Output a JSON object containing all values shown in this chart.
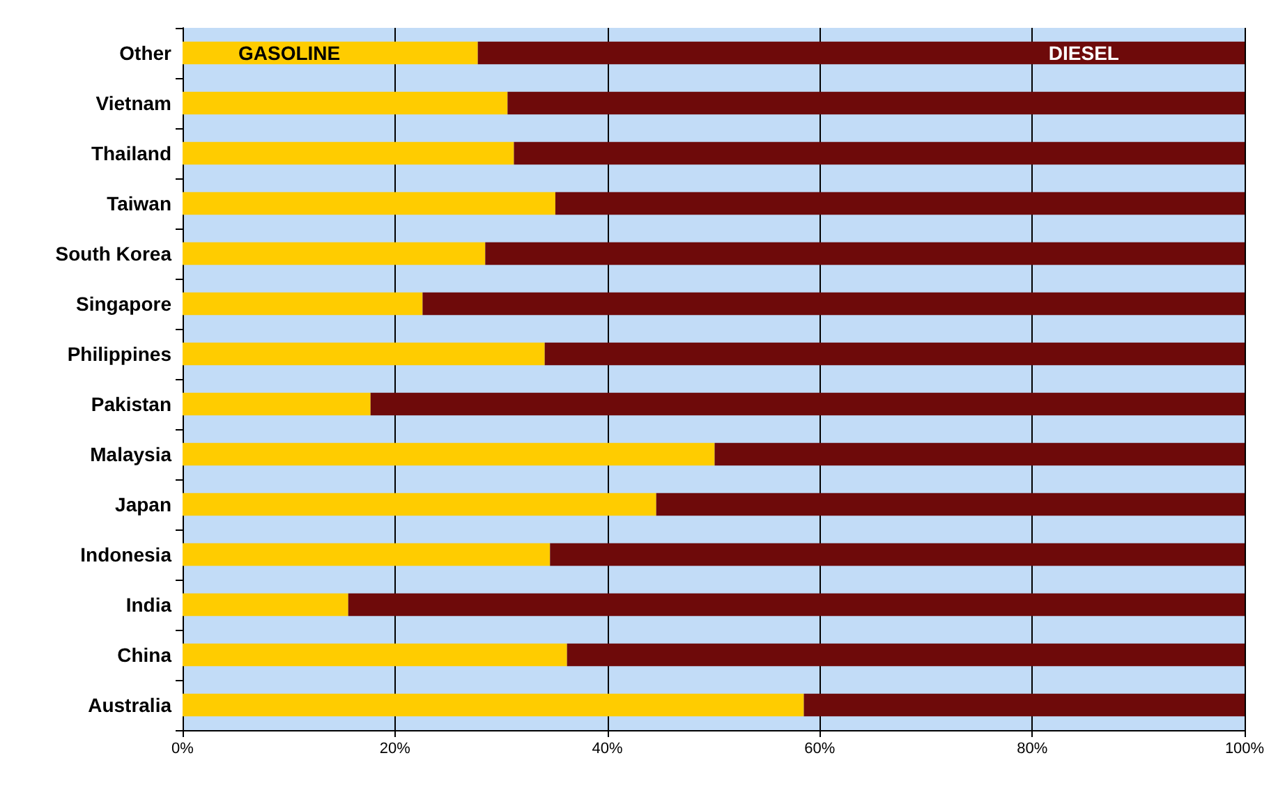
{
  "chart_data": {
    "type": "bar",
    "orientation": "horizontal",
    "stacked": true,
    "categories": [
      "Other",
      "Vietnam",
      "Thailand",
      "Taiwan",
      "South Korea",
      "Singapore",
      "Philippines",
      "Pakistan",
      "Malaysia",
      "Japan",
      "Indonesia",
      "India",
      "China",
      "Australia"
    ],
    "series": [
      {
        "name": "GASOLINE",
        "color": "#ffcc00",
        "values": [
          27.8,
          30.6,
          31.2,
          35.1,
          28.5,
          22.6,
          34.1,
          17.7,
          50.1,
          44.6,
          34.6,
          15.6,
          36.2,
          58.5
        ]
      },
      {
        "name": "DIESEL",
        "color": "#6e0a0a",
        "values": [
          72.2,
          69.4,
          68.8,
          64.9,
          71.5,
          77.4,
          65.9,
          82.3,
          49.9,
          55.4,
          65.4,
          84.4,
          63.8,
          41.5
        ]
      }
    ],
    "xlim": [
      0,
      100
    ],
    "xticks": [
      {
        "value": 0,
        "label": "0%"
      },
      {
        "value": 20,
        "label": "20%"
      },
      {
        "value": 40,
        "label": "40%"
      },
      {
        "value": 60,
        "label": "60%"
      },
      {
        "value": 80,
        "label": "80%"
      },
      {
        "value": 100,
        "label": "100%"
      }
    ],
    "grid": "x"
  }
}
